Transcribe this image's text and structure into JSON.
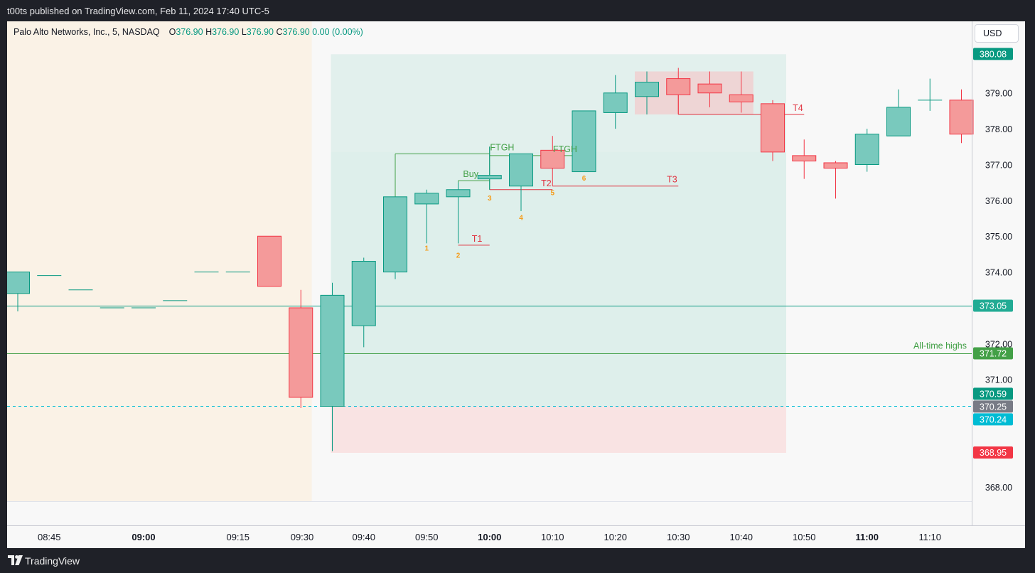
{
  "header": {
    "published": "t00ts published on TradingView.com, Feb 11, 2024 17:40 UTC-5"
  },
  "legend": {
    "symbol": "Palo Alto Networks, Inc., 5, NASDAQ",
    "o_label": "O",
    "o": "376.90",
    "h_label": "H",
    "h": "376.90",
    "l_label": "L",
    "l": "376.90",
    "c_label": "C",
    "c": "376.90",
    "change": "0.00 (0.00%)"
  },
  "currency": "USD",
  "footer": {
    "brand": "TradingView"
  },
  "colors": {
    "up": "#089981",
    "up_fill": "#79c9bd",
    "down": "#f23645",
    "down_fill": "#f49a9a",
    "annotation_green": "#43a047",
    "annotation_red": "#e0323f",
    "number_orange": "#f59c1a",
    "premarket": "#faf2e6",
    "target_zone": "#dbeeea",
    "stop_zone": "#f9e3e3"
  },
  "chart_data": {
    "type": "candlestick",
    "interval": "5",
    "ylim": [
      367.6,
      381.0
    ],
    "y_ticks": [
      "368.00",
      "371.00",
      "372.00",
      "374.00",
      "375.00",
      "376.00",
      "377.00",
      "378.00",
      "379.00"
    ],
    "x_ticks": [
      {
        "label": "08:45",
        "bold": false,
        "time": "08:45"
      },
      {
        "label": "09:00",
        "bold": true,
        "time": "09:00"
      },
      {
        "label": "09:15",
        "bold": false,
        "time": "09:15"
      },
      {
        "label": "09:30",
        "bold": false,
        "time": "09:30"
      },
      {
        "label": "09:40",
        "bold": false,
        "time": "09:40"
      },
      {
        "label": "09:50",
        "bold": false,
        "time": "09:50"
      },
      {
        "label": "10:00",
        "bold": true,
        "time": "10:00"
      },
      {
        "label": "10:10",
        "bold": false,
        "time": "10:10"
      },
      {
        "label": "10:20",
        "bold": false,
        "time": "10:20"
      },
      {
        "label": "10:30",
        "bold": false,
        "time": "10:30"
      },
      {
        "label": "10:40",
        "bold": false,
        "time": "10:40"
      },
      {
        "label": "10:50",
        "bold": false,
        "time": "10:50"
      },
      {
        "label": "11:00",
        "bold": true,
        "time": "11:00"
      },
      {
        "label": "11:10",
        "bold": false,
        "time": "11:10"
      }
    ],
    "candles": [
      {
        "t": "08:40",
        "o": 373.4,
        "h": 374.0,
        "l": 372.9,
        "c": 374.0
      },
      {
        "t": "08:45",
        "o": 373.9,
        "h": 373.9,
        "l": 373.9,
        "c": 373.9
      },
      {
        "t": "08:50",
        "o": 373.5,
        "h": 373.5,
        "l": 373.5,
        "c": 373.5
      },
      {
        "t": "08:55",
        "o": 373.0,
        "h": 373.0,
        "l": 373.0,
        "c": 373.0
      },
      {
        "t": "09:00",
        "o": 373.0,
        "h": 373.0,
        "l": 373.0,
        "c": 373.0
      },
      {
        "t": "09:05",
        "o": 373.2,
        "h": 373.2,
        "l": 373.2,
        "c": 373.2
      },
      {
        "t": "09:10",
        "o": 374.0,
        "h": 374.0,
        "l": 374.0,
        "c": 374.0
      },
      {
        "t": "09:15",
        "o": 374.0,
        "h": 374.0,
        "l": 374.0,
        "c": 374.0
      },
      {
        "t": "09:20",
        "o": 375.0,
        "h": 375.0,
        "l": 373.6,
        "c": 373.6
      },
      {
        "t": "09:30",
        "o": 373.0,
        "h": 373.5,
        "l": 370.2,
        "c": 370.5
      },
      {
        "t": "09:35",
        "o": 370.25,
        "h": 373.7,
        "l": 369.0,
        "c": 373.35
      },
      {
        "t": "09:40",
        "o": 372.5,
        "h": 374.4,
        "l": 371.9,
        "c": 374.3
      },
      {
        "t": "09:45",
        "o": 374.0,
        "h": 376.1,
        "l": 373.8,
        "c": 376.1
      },
      {
        "t": "09:50",
        "o": 375.9,
        "h": 376.3,
        "l": 374.8,
        "c": 376.2
      },
      {
        "t": "09:55",
        "o": 376.1,
        "h": 376.5,
        "l": 374.8,
        "c": 376.3
      },
      {
        "t": "10:00",
        "o": 376.6,
        "h": 377.5,
        "l": 376.3,
        "c": 376.7
      },
      {
        "t": "10:05",
        "o": 376.4,
        "h": 377.3,
        "l": 375.7,
        "c": 377.3
      },
      {
        "t": "10:10",
        "o": 377.4,
        "h": 377.8,
        "l": 376.4,
        "c": 376.9
      },
      {
        "t": "10:15",
        "o": 376.8,
        "h": 378.5,
        "l": 376.8,
        "c": 378.5
      },
      {
        "t": "10:20",
        "o": 378.45,
        "h": 379.5,
        "l": 378.0,
        "c": 379.0
      },
      {
        "t": "10:25",
        "o": 378.9,
        "h": 379.6,
        "l": 378.4,
        "c": 379.3
      },
      {
        "t": "10:30",
        "o": 379.4,
        "h": 379.7,
        "l": 378.4,
        "c": 378.95
      },
      {
        "t": "10:35",
        "o": 379.25,
        "h": 379.6,
        "l": 378.6,
        "c": 379.0
      },
      {
        "t": "10:40",
        "o": 378.95,
        "h": 379.6,
        "l": 378.45,
        "c": 378.75
      },
      {
        "t": "10:45",
        "o": 378.7,
        "h": 378.8,
        "l": 377.1,
        "c": 377.35
      },
      {
        "t": "10:50",
        "o": 377.25,
        "h": 377.7,
        "l": 376.6,
        "c": 377.1
      },
      {
        "t": "10:55",
        "o": 377.05,
        "h": 377.1,
        "l": 376.05,
        "c": 376.9
      },
      {
        "t": "11:00",
        "o": 377.0,
        "h": 378.0,
        "l": 376.8,
        "c": 377.85
      },
      {
        "t": "11:05",
        "o": 377.8,
        "h": 379.1,
        "l": 377.8,
        "c": 378.6
      },
      {
        "t": "11:10",
        "o": 378.8,
        "h": 379.4,
        "l": 378.5,
        "c": 378.8
      },
      {
        "t": "11:15",
        "o": 378.8,
        "h": 379.1,
        "l": 377.6,
        "c": 377.85
      }
    ],
    "horizontal_lines": [
      {
        "price": 373.05,
        "style": "solid",
        "color": "#089981"
      },
      {
        "price": 371.72,
        "style": "solid",
        "color": "#43a047",
        "label": "All-time highs"
      },
      {
        "price": 370.25,
        "style": "dashed",
        "color": "#00bcd4"
      }
    ],
    "price_labels": [
      {
        "text": "380.08",
        "price": 380.08,
        "bg": "#089981",
        "fg": "#ffffff"
      },
      {
        "text": "373.05",
        "price": 373.05,
        "bg": "#22ab94",
        "fg": "#ffffff"
      },
      {
        "text": "371.72",
        "price": 371.72,
        "bg": "#43a047",
        "fg": "#ffffff"
      },
      {
        "text": "370.59",
        "price": 370.59,
        "bg": "#089981",
        "fg": "#ffffff"
      },
      {
        "text": "370.25",
        "price": 370.25,
        "bg": "#787b86",
        "fg": "#ffffff"
      },
      {
        "text": "370.24",
        "price": 370.24,
        "bg": "#00bcd4",
        "fg": "#ffffff"
      },
      {
        "text": "368.95",
        "price": 368.95,
        "bg": "#f23645",
        "fg": "#ffffff"
      }
    ],
    "premarket_shading": {
      "from": "08:40",
      "to": "09:25"
    },
    "long_position": {
      "from": "09:35",
      "to": "10:45",
      "entry": 370.25,
      "target": 380.08,
      "stop": 368.95
    },
    "highlight_box": {
      "from": "10:25",
      "to": "10:40",
      "top": 379.6,
      "bottom": 378.4
    },
    "annotations": [
      {
        "text": "FTGH",
        "type": "green",
        "level": 377.3,
        "from": "09:45",
        "to": "10:00",
        "label_at": "10:02"
      },
      {
        "text": "Buy",
        "type": "green",
        "level": 376.55,
        "from": "09:55",
        "to": "10:00",
        "label_at": "09:57"
      },
      {
        "text": "FTGH",
        "type": "green",
        "level": 377.25,
        "from": "10:00",
        "to": "10:15",
        "label_at": "10:12"
      },
      {
        "text": "T1",
        "type": "red",
        "level": 374.75,
        "from": "09:55",
        "to": "10:00",
        "label_at": "09:58"
      },
      {
        "text": "T2",
        "type": "red",
        "level": 376.3,
        "from": "10:00",
        "to": "10:10",
        "label_at": "10:09"
      },
      {
        "text": "T3",
        "type": "red",
        "level": 376.4,
        "from": "10:10",
        "to": "10:30",
        "label_at": "10:29"
      },
      {
        "text": "T4",
        "type": "red",
        "level": 378.4,
        "from": "10:30",
        "to": "10:50",
        "label_at": "10:49"
      }
    ],
    "bar_numbers": [
      {
        "text": "1",
        "t": "09:50",
        "price": 374.6
      },
      {
        "text": "2",
        "t": "09:55",
        "price": 374.4
      },
      {
        "text": "3",
        "t": "10:00",
        "price": 376.0
      },
      {
        "text": "4",
        "t": "10:05",
        "price": 375.45
      },
      {
        "text": "5",
        "t": "10:10",
        "price": 376.15
      },
      {
        "text": "6",
        "t": "10:15",
        "price": 376.55
      }
    ]
  }
}
